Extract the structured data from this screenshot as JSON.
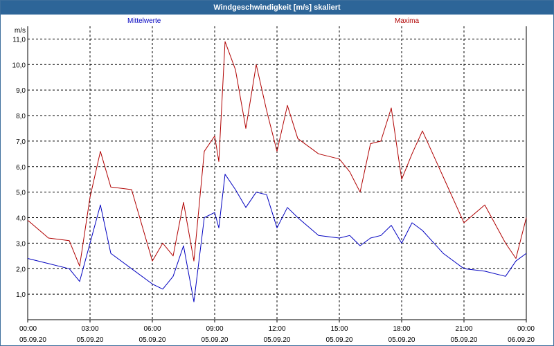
{
  "window": {
    "title": "Windgeschwindigkeit [m/s] skaliert"
  },
  "legend": {
    "mittelwerte": "Mittelwerte",
    "maxima": "Maxima",
    "mittel_color": "#0000c0",
    "max_color": "#b00000"
  },
  "chart_data": {
    "type": "line",
    "title": "Windgeschwindigkeit [m/s] skaliert",
    "ylabel": "m/s",
    "ylim": [
      0,
      11.5
    ],
    "yticks": [
      1.0,
      2.0,
      3.0,
      4.0,
      5.0,
      6.0,
      7.0,
      8.0,
      9.0,
      10.0,
      11.0
    ],
    "ytick_labels": [
      "1,0",
      "2,0",
      "3,0",
      "4,0",
      "5,0",
      "6,0",
      "7,0",
      "8,0",
      "9,0",
      "10,0",
      "11,0"
    ],
    "xlim_hours": [
      0,
      24
    ],
    "xticks": [
      {
        "time": "00:00",
        "date": "05.09.20"
      },
      {
        "time": "03:00",
        "date": "05.09.20"
      },
      {
        "time": "06:00",
        "date": "05.09.20"
      },
      {
        "time": "09:00",
        "date": "05.09.20"
      },
      {
        "time": "12:00",
        "date": "05.09.20"
      },
      {
        "time": "15:00",
        "date": "05.09.20"
      },
      {
        "time": "18:00",
        "date": "05.09.20"
      },
      {
        "time": "21:00",
        "date": "05.09.20"
      },
      {
        "time": "00:00",
        "date": "06.09.20"
      }
    ],
    "grid": true,
    "x_hours": [
      0,
      1,
      2,
      2.5,
      3,
      3.5,
      4,
      5,
      6,
      6.5,
      7,
      7.5,
      8,
      8.5,
      9,
      9.2,
      9.5,
      10,
      10.5,
      11,
      11.5,
      12,
      12.5,
      13,
      14,
      15,
      15.5,
      16,
      16.5,
      17,
      17.5,
      18,
      18.5,
      19,
      20,
      21,
      22,
      23,
      23.5,
      24
    ],
    "series": [
      {
        "name": "Mittelwerte",
        "color": "#0000c0",
        "values": [
          2.4,
          2.2,
          2.0,
          1.5,
          3.0,
          4.5,
          2.6,
          2.0,
          1.4,
          1.2,
          1.7,
          2.9,
          0.7,
          4.0,
          4.2,
          3.6,
          5.7,
          5.1,
          4.4,
          5.0,
          4.9,
          3.6,
          4.4,
          4.0,
          3.3,
          3.2,
          3.3,
          2.9,
          3.2,
          3.3,
          3.7,
          3.0,
          3.8,
          3.5,
          2.6,
          2.0,
          1.9,
          1.7,
          2.3,
          2.6
        ]
      },
      {
        "name": "Maxima",
        "color": "#b00000",
        "values": [
          3.9,
          3.2,
          3.1,
          2.1,
          4.8,
          6.6,
          5.2,
          5.1,
          2.3,
          3.0,
          2.5,
          4.6,
          2.3,
          6.6,
          7.2,
          6.2,
          10.9,
          9.8,
          7.5,
          10.0,
          8.2,
          6.6,
          8.4,
          7.1,
          6.5,
          6.3,
          5.8,
          5.0,
          6.9,
          7.0,
          8.3,
          5.5,
          6.5,
          7.4,
          5.6,
          3.8,
          4.5,
          3.0,
          2.4,
          4.0
        ]
      }
    ]
  }
}
